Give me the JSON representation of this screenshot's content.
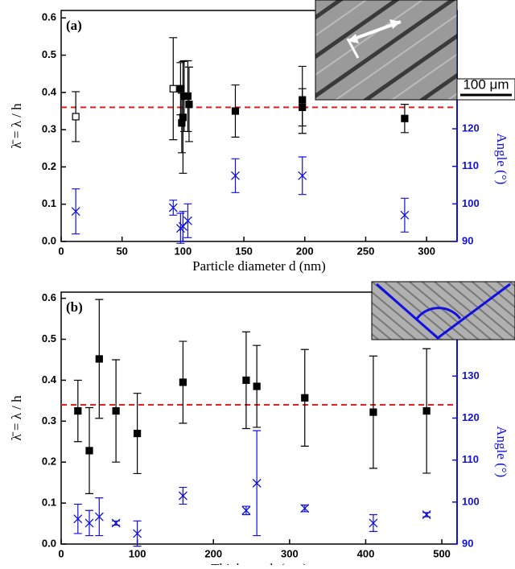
{
  "chart_data": [
    {
      "type": "scatter",
      "panel_label": "(a)",
      "xlabel": "Particle diameter d (nm)",
      "ylabel": "λ̄ = λ / h",
      "y2label": "Angle (°)",
      "xlim": [
        0,
        325
      ],
      "xticks": [
        0,
        50,
        100,
        150,
        200,
        250,
        300
      ],
      "ylim": [
        0,
        0.62
      ],
      "yticks": [
        {
          "value": 0,
          "label": "0.0"
        },
        0.1,
        0.2,
        0.3,
        0.4,
        0.5,
        0.6
      ],
      "y2lim": [
        90,
        151.5
      ],
      "y2ticks": [
        90,
        100,
        110,
        120
      ],
      "y2color": "#1010e0",
      "hline": 0.36,
      "hline_color": "#e02020",
      "inset_label": "100 μm",
      "series": [
        {
          "marker": "open-square",
          "color": "#000000",
          "x": [
            12,
            92
          ],
          "values": [
            0.335,
            0.41
          ],
          "errors": [
            0.067,
            0.137
          ]
        },
        {
          "marker": "square",
          "color": "#000000",
          "x": [
            98,
            99,
            100,
            101,
            104,
            105,
            143,
            198,
            198,
            282
          ],
          "values": [
            0.41,
            0.318,
            0.333,
            0.39,
            0.39,
            0.368,
            0.35,
            0.38,
            0.36,
            0.33
          ],
          "errors": [
            0.07,
            0.08,
            0.15,
            0.095,
            0.095,
            0.1,
            0.07,
            0.09,
            0.05,
            0.038
          ]
        },
        {
          "marker": "x",
          "color": "#1010e0",
          "axis": "y2",
          "x": [
            12,
            92,
            98,
            100,
            104,
            143,
            198,
            282
          ],
          "values": [
            98,
            99,
            93.5,
            94,
            95.5,
            107.5,
            107.5,
            97
          ],
          "errors": [
            6,
            2,
            4,
            4,
            4.5,
            4.5,
            5,
            4.5
          ]
        }
      ]
    },
    {
      "type": "scatter",
      "panel_label": "(b)",
      "xlabel": "Thickness h (μm)",
      "ylabel": "λ̄ = λ / h",
      "y2label": "Angle (°)",
      "xlim": [
        0,
        520
      ],
      "xticks": [
        0,
        100,
        200,
        300,
        400,
        500
      ],
      "ylim": [
        0,
        0.615
      ],
      "yticks": [
        {
          "value": 0,
          "label": "0.0"
        },
        0.1,
        0.2,
        0.3,
        0.4,
        0.5,
        0.6
      ],
      "y2lim": [
        90,
        150
      ],
      "y2ticks": [
        90,
        100,
        110,
        120,
        130
      ],
      "y2color": "#1010e0",
      "hline": 0.34,
      "hline_color": "#e02020",
      "series": [
        {
          "marker": "square",
          "color": "#000000",
          "x": [
            22,
            37,
            50,
            72,
            100,
            160,
            243,
            257,
            320,
            410,
            480
          ],
          "values": [
            0.325,
            0.228,
            0.452,
            0.325,
            0.27,
            0.395,
            0.4,
            0.385,
            0.357,
            0.322,
            0.325
          ],
          "errors": [
            0.075,
            0.105,
            0.145,
            0.125,
            0.098,
            0.1,
            0.118,
            0.1,
            0.118,
            0.137,
            0.152
          ]
        },
        {
          "marker": "x",
          "color": "#1010e0",
          "axis": "y2",
          "x": [
            22,
            37,
            50,
            72,
            100,
            160,
            243,
            257,
            320,
            410,
            480
          ],
          "values": [
            96,
            95,
            96.5,
            95,
            92.5,
            101.5,
            98,
            104.5,
            98.5,
            95,
            97
          ],
          "errors": [
            3.5,
            3,
            4.5,
            0.5,
            3,
            2,
            1,
            12.5,
            0.8,
            2,
            0.5
          ]
        }
      ]
    }
  ]
}
